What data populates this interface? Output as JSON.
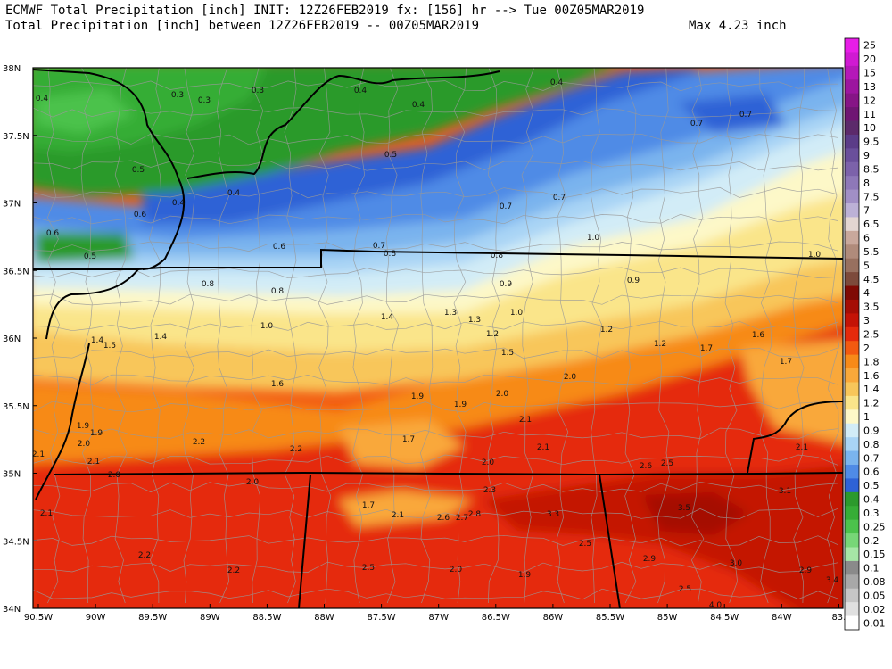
{
  "header": {
    "line1": "ECMWF Total Precipitation [inch] INIT: 12Z26FEB2019 fx: [156] hr --> Tue 00Z05MAR2019",
    "line2": "Total Precipitation [inch] between 12Z26FEB2019 -- 00Z05MAR2019",
    "max_label": "Max 4.23 inch"
  },
  "axes": {
    "lat_labels": [
      "38N",
      "37.5N",
      "37N",
      "36.5N",
      "36N",
      "35.5N",
      "35N",
      "34.5N",
      "34N"
    ],
    "lon_labels": [
      "90.5W",
      "90W",
      "89.5W",
      "89W",
      "88.5W",
      "88W",
      "87.5W",
      "87W",
      "86.5W",
      "86W",
      "85.5W",
      "85W",
      "84.5W",
      "84W",
      "83."
    ]
  },
  "colorbar": {
    "labels": [
      "25",
      "20",
      "15",
      "13",
      "12",
      "11",
      "10",
      "9.5",
      "9",
      "8.5",
      "8",
      "7.5",
      "7",
      "6.5",
      "6",
      "5.5",
      "5",
      "4.5",
      "4",
      "3.5",
      "3",
      "2.5",
      "2",
      "1.8",
      "1.6",
      "1.4",
      "1.2",
      "1",
      "0.9",
      "0.8",
      "0.7",
      "0.6",
      "0.5",
      "0.4",
      "0.3",
      "0.25",
      "0.2",
      "0.15",
      "0.1",
      "0.08",
      "0.05",
      "0.02",
      "0.01"
    ],
    "colors": [
      "#e81ee8",
      "#d01ad2",
      "#b518b9",
      "#9c169f",
      "#861586",
      "#6f1673",
      "#5c2a6b",
      "#5b3c88",
      "#6a4f9b",
      "#7c62aa",
      "#8e78b8",
      "#a18fc5",
      "#bcb1d6",
      "#e3d6d2",
      "#c9a89c",
      "#b08b7b",
      "#98705f",
      "#7d4a3b",
      "#7f0a04",
      "#a50d05",
      "#c41306",
      "#e52a0c",
      "#f25a10",
      "#f78a18",
      "#f9a83a",
      "#f8c65a",
      "#fae58a",
      "#fdf8c8",
      "#d2ecf7",
      "#a9d4f5",
      "#7ab4ee",
      "#4f8be6",
      "#2e62d6",
      "#2c9a2c",
      "#36ad36",
      "#4cc24c",
      "#77d677",
      "#a6e6a6",
      "#8a8a8a",
      "#a8a8a8",
      "#c6c6c6",
      "#e0e0e0",
      "#ffffff"
    ]
  },
  "contour_labels": [
    "0.4",
    "0.3",
    "0.3",
    "0.3",
    "0.4",
    "0.4",
    "0.4",
    "0.5",
    "0.5",
    "0.4",
    "0.4",
    "0.6",
    "0.6",
    "0.5",
    "0.7",
    "0.7",
    "0.7",
    "0.7",
    "0.6",
    "0.7",
    "0.8",
    "0.8",
    "0.8",
    "0.8",
    "1.0",
    "1.0",
    "0.9",
    "0.9",
    "1.0",
    "1.4",
    "1.3",
    "1.0",
    "1.3",
    "1.2",
    "1.2",
    "1.2",
    "1.4",
    "1.5",
    "1.4",
    "1.5",
    "1.2",
    "1.5",
    "1.2",
    "1.6",
    "1.7",
    "1.7",
    "1.6",
    "2.0",
    "1.9",
    "1.9",
    "2.0",
    "2.1",
    "1.7",
    "1.9",
    "1.9",
    "2.0",
    "2.1",
    "2.2",
    "2.2",
    "1.7",
    "2.0",
    "2.1",
    "2.1",
    "2.0",
    "2.0",
    "2.3",
    "2.6",
    "2.5",
    "2.1",
    "2.1",
    "2.6",
    "2.7",
    "2.8",
    "3.3",
    "3.5",
    "3.1",
    "1.7",
    "2.1",
    "2.2",
    "2.2",
    "2.5",
    "2.0",
    "1.9",
    "2.5",
    "2.9",
    "3.0",
    "2.9",
    "2.5",
    "3.4",
    "4.0"
  ],
  "legend_colors": {
    "green": "#2c9a2c",
    "blue": "#2e62d6",
    "orange": "#f78a18",
    "red": "#c41306",
    "boundary": "#000000",
    "county": "#999999"
  }
}
